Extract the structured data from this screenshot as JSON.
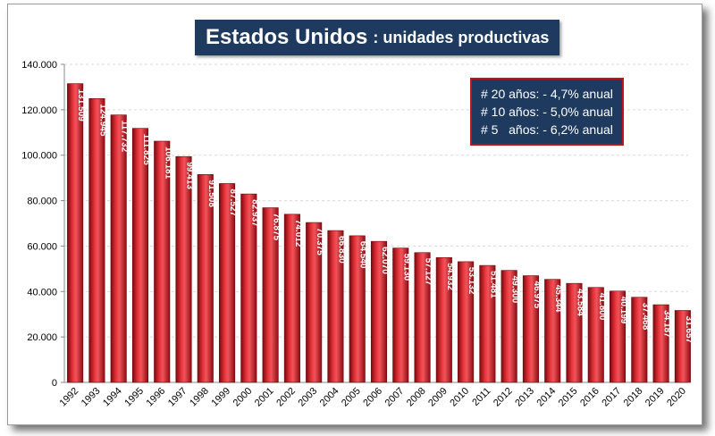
{
  "chart_data": {
    "type": "bar",
    "title": "Estados Unidos",
    "subtitle": "unidades productivas",
    "categories": [
      "1992",
      "1993",
      "1994",
      "1995",
      "1996",
      "1997",
      "1998",
      "1999",
      "2000",
      "2001",
      "2002",
      "2003",
      "2004",
      "2005",
      "2006",
      "2007",
      "2008",
      "2009",
      "2010",
      "2011",
      "2012",
      "2013",
      "2014",
      "2015",
      "2016",
      "2017",
      "2018",
      "2019",
      "2020"
    ],
    "values": [
      131509,
      124945,
      117732,
      111825,
      106181,
      99413,
      91508,
      87527,
      82937,
      76875,
      74012,
      70375,
      66830,
      64540,
      62070,
      59130,
      57127,
      54932,
      53132,
      51481,
      49300,
      46975,
      45344,
      43584,
      41800,
      40199,
      37468,
      34187,
      31657
    ],
    "value_labels": [
      "131.509",
      "124.945",
      "117.732",
      "111.825",
      "106.181",
      "99.413",
      "91.508",
      "87.527",
      "82.937",
      "76.875",
      "74.012",
      "70.375",
      "66.830",
      "64.540",
      "62.070",
      "59.130",
      "57.127",
      "54.932",
      "53.132",
      "51.481",
      "49.300",
      "46.975",
      "45.344",
      "43.584",
      "41.800",
      "40.199",
      "37.468",
      "34.187",
      "31.657"
    ],
    "ylim": [
      0,
      140000
    ],
    "yticks": [
      0,
      20000,
      40000,
      60000,
      80000,
      100000,
      120000,
      140000
    ],
    "ytick_labels": [
      "0",
      "20.000",
      "40.000",
      "60.000",
      "80.000",
      "100.000",
      "120.000",
      "140.000"
    ],
    "xlabel": "",
    "ylabel": "",
    "grid": true,
    "colors": {
      "bar": "#c0141c",
      "bar_dark": "#7a0a0e",
      "bar_light": "#f0545a",
      "title_bg": "#1f3a5f",
      "grid": "#d9d9d9"
    },
    "annotations": [
      "# 20 años: - 4,7% anual",
      "# 10 años: - 5,0% anual",
      "# 5   años: - 6,2% anual"
    ]
  }
}
